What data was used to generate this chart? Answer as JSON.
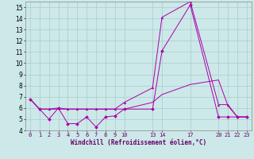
{
  "xlabel": "Windchill (Refroidissement éolien,°C)",
  "background_color": "#cce8e8",
  "grid_color": "#aacccc",
  "line_color": "#aa00aa",
  "xlim": [
    -0.5,
    23.5
  ],
  "ylim": [
    4,
    15.5
  ],
  "yticks": [
    4,
    5,
    6,
    7,
    8,
    9,
    10,
    11,
    12,
    13,
    14,
    15
  ],
  "xticks": [
    0,
    1,
    2,
    3,
    4,
    5,
    6,
    7,
    8,
    9,
    10,
    13,
    14,
    17,
    20,
    21,
    22,
    23
  ],
  "xtick_labels": [
    "0",
    "1",
    "2",
    "3",
    "4",
    "5",
    "6",
    "7",
    "8",
    "9",
    "10",
    "13",
    "14",
    "17",
    "20",
    "21",
    "22",
    "23"
  ],
  "line1_x": [
    0,
    1,
    2,
    3,
    4,
    5,
    6,
    7,
    8,
    9,
    10,
    13,
    14,
    17,
    20,
    21,
    22,
    23
  ],
  "line1_y": [
    6.8,
    5.9,
    5.0,
    6.0,
    4.6,
    4.6,
    5.2,
    4.3,
    5.2,
    5.3,
    5.9,
    5.9,
    11.1,
    15.2,
    5.2,
    5.2,
    5.2,
    5.2
  ],
  "line2_x": [
    0,
    1,
    2,
    3,
    4,
    5,
    6,
    7,
    8,
    9,
    10,
    13,
    14,
    17,
    20,
    21,
    22,
    23
  ],
  "line2_y": [
    6.8,
    5.9,
    5.9,
    6.0,
    5.9,
    5.9,
    5.9,
    5.9,
    5.9,
    5.9,
    6.5,
    7.8,
    14.1,
    15.5,
    6.3,
    6.3,
    5.2,
    5.2
  ],
  "line3_x": [
    0,
    1,
    2,
    3,
    4,
    5,
    6,
    7,
    8,
    9,
    10,
    13,
    14,
    17,
    20,
    21,
    22,
    23
  ],
  "line3_y": [
    6.8,
    5.9,
    5.9,
    5.9,
    5.9,
    5.9,
    5.9,
    5.9,
    5.9,
    5.9,
    5.9,
    6.5,
    7.2,
    8.1,
    8.5,
    6.2,
    5.2,
    5.2
  ]
}
